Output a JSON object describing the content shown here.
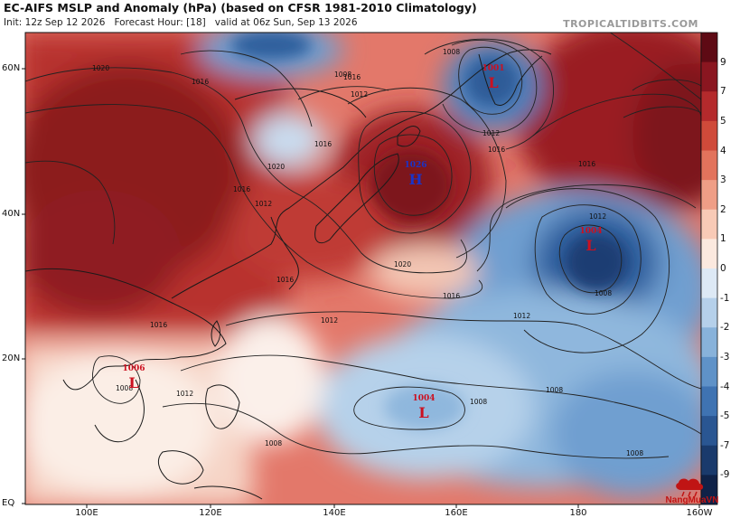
{
  "header": {
    "title": "EC-AIFS MSLP and Anomaly (hPa) (based on CFSR 1981-2010 Climatology)",
    "init": "Init: 12z Sep 12 2026",
    "forecast_hour": "Forecast Hour: [18]",
    "valid": "valid at 06z Sun, Sep 13 2026",
    "brand": "TROPICALTIDBITS.COM"
  },
  "axes": {
    "lat_labels": [
      "60N",
      "40N",
      "20N",
      "EQ"
    ],
    "lon_labels": [
      "100E",
      "120E",
      "140E",
      "160E",
      "180",
      "160W"
    ]
  },
  "colorbar": {
    "labels": [
      "9",
      "7",
      "5",
      "4",
      "3",
      "2",
      "1",
      "0",
      "-1",
      "-2",
      "-3",
      "-4",
      "-5",
      "-7",
      "-9"
    ],
    "colors": [
      "#5e0a14",
      "#8a1620",
      "#b42a2c",
      "#cf4a3a",
      "#e2735c",
      "#ef9e86",
      "#f8cab6",
      "#fbe9df",
      "#dde9f5",
      "#b5d0ea",
      "#88b2da",
      "#5f92c8",
      "#3f73b2",
      "#2a5692",
      "#1a3a6c",
      "#0f2248"
    ]
  },
  "pressure_centers": [
    {
      "type": "L",
      "value": "1001"
    },
    {
      "type": "H",
      "value": "1026"
    },
    {
      "type": "L",
      "value": "1004"
    },
    {
      "type": "L",
      "value": "1006"
    },
    {
      "type": "L",
      "value": "1004"
    }
  ],
  "isobar_labels": [
    "1020",
    "1016",
    "1016",
    "1012",
    "1008",
    "1008",
    "1016",
    "1012",
    "1016",
    "1020",
    "1016",
    "1012",
    "1012",
    "1012",
    "1016",
    "1008",
    "1008",
    "1008",
    "1008",
    "1016",
    "1012",
    "1008",
    "1020",
    "1016",
    "1012",
    "1008",
    "1016"
  ],
  "watermark": {
    "text": "NangMuaVN"
  }
}
